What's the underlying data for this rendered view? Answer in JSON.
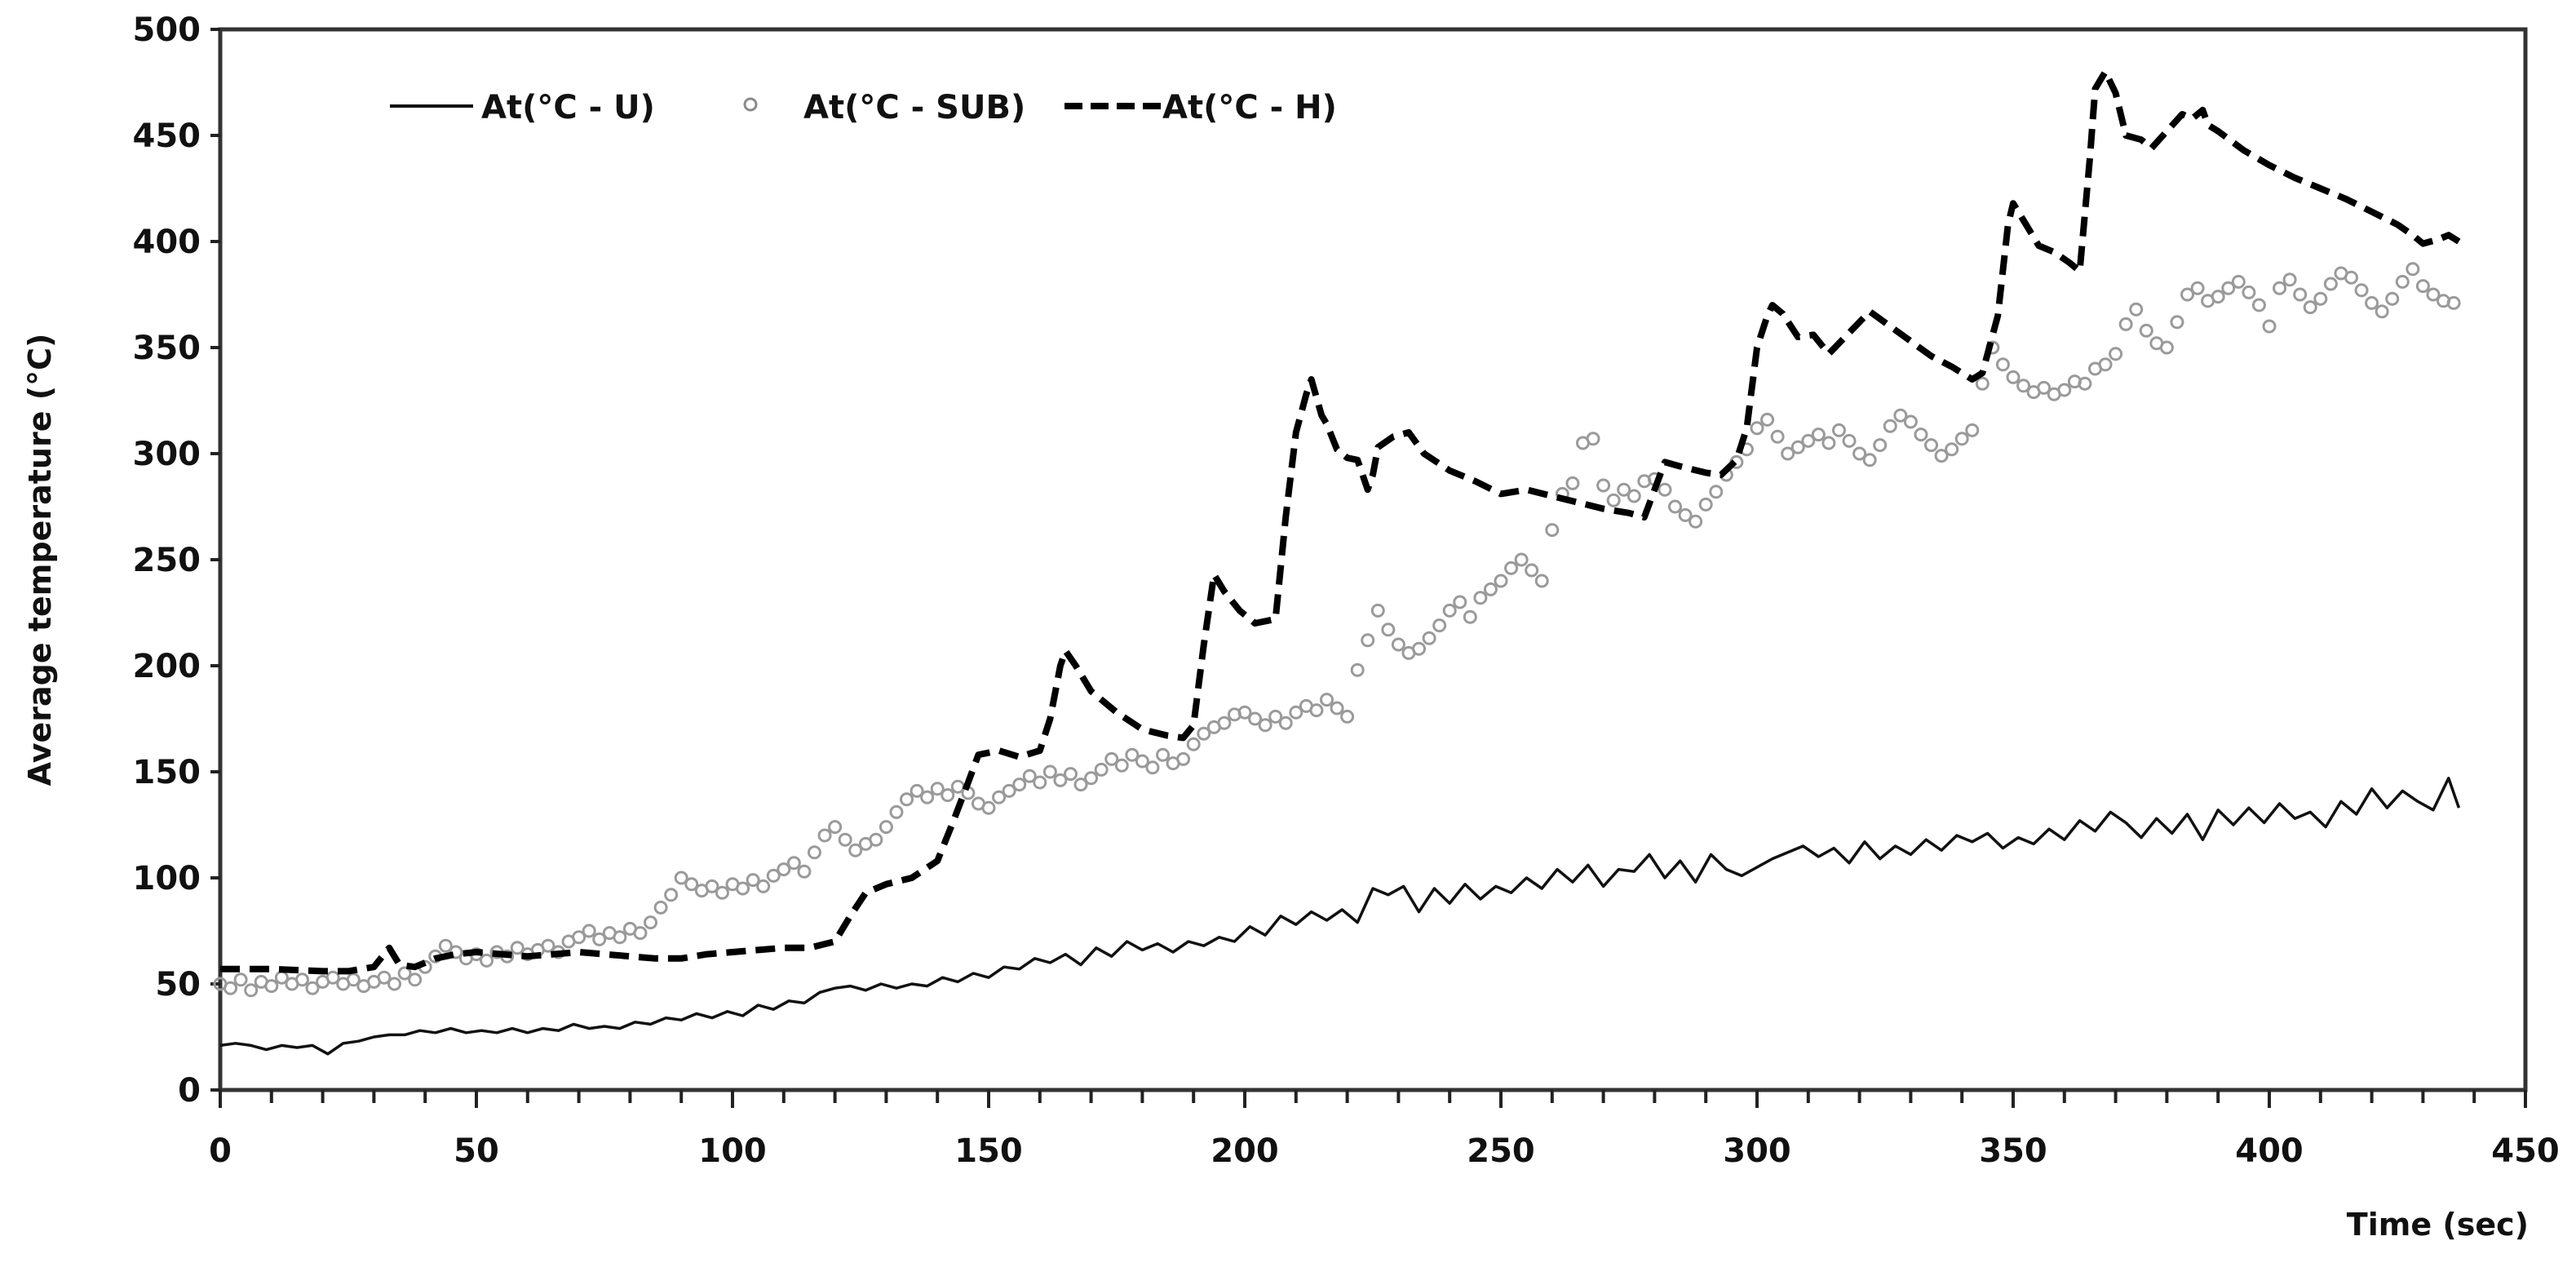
{
  "chart_data": {
    "type": "line",
    "title": "",
    "xlabel": "Time (sec)",
    "ylabel": "Average temperature (°C)",
    "xlim": [
      0,
      450
    ],
    "ylim": [
      0,
      500
    ],
    "x_ticks": [
      0,
      50,
      100,
      150,
      200,
      250,
      300,
      350,
      400,
      450
    ],
    "x_minor_step": 10,
    "y_ticks": [
      0,
      50,
      100,
      150,
      200,
      250,
      300,
      350,
      400,
      450,
      500
    ],
    "grid": false,
    "legend_position": "top-left-inside",
    "series": [
      {
        "name": "At(°C - U)",
        "style": "solid",
        "color": "#111111",
        "x": [
          0,
          3,
          6,
          9,
          12,
          15,
          18,
          21,
          24,
          27,
          30,
          33,
          36,
          39,
          42,
          45,
          48,
          51,
          54,
          57,
          60,
          63,
          66,
          69,
          72,
          75,
          78,
          81,
          84,
          87,
          90,
          93,
          96,
          99,
          102,
          105,
          108,
          111,
          114,
          117,
          120,
          123,
          126,
          129,
          132,
          135,
          138,
          141,
          144,
          147,
          150,
          153,
          156,
          159,
          162,
          165,
          168,
          171,
          174,
          177,
          180,
          183,
          186,
          189,
          192,
          195,
          198,
          201,
          204,
          207,
          210,
          213,
          216,
          219,
          222,
          225,
          228,
          231,
          234,
          237,
          240,
          243,
          246,
          249,
          252,
          255,
          258,
          261,
          264,
          267,
          270,
          273,
          276,
          279,
          282,
          285,
          288,
          291,
          294,
          297,
          300,
          303,
          306,
          309,
          312,
          315,
          318,
          321,
          324,
          327,
          330,
          333,
          336,
          339,
          342,
          345,
          348,
          351,
          354,
          357,
          360,
          363,
          366,
          369,
          372,
          375,
          378,
          381,
          384,
          387,
          390,
          393,
          396,
          399,
          402,
          405,
          408,
          411,
          414,
          417,
          420,
          423,
          426,
          429,
          432,
          435,
          437
        ],
        "values": [
          21,
          22,
          21,
          19,
          21,
          20,
          21,
          17,
          22,
          23,
          25,
          26,
          26,
          28,
          27,
          29,
          27,
          28,
          27,
          29,
          27,
          29,
          28,
          31,
          29,
          30,
          29,
          32,
          31,
          34,
          33,
          36,
          34,
          37,
          35,
          40,
          38,
          42,
          41,
          46,
          48,
          49,
          47,
          50,
          48,
          50,
          49,
          53,
          51,
          55,
          53,
          58,
          57,
          62,
          60,
          64,
          59,
          67,
          63,
          70,
          66,
          69,
          65,
          70,
          68,
          72,
          70,
          77,
          73,
          82,
          78,
          84,
          80,
          85,
          79,
          95,
          92,
          96,
          84,
          95,
          88,
          97,
          90,
          96,
          93,
          100,
          95,
          104,
          98,
          106,
          96,
          104,
          103,
          111,
          100,
          108,
          98,
          111,
          104,
          101,
          105,
          109,
          112,
          115,
          110,
          114,
          107,
          117,
          109,
          115,
          111,
          118,
          113,
          120,
          117,
          121,
          114,
          119,
          116,
          123,
          118,
          127,
          122,
          131,
          126,
          119,
          128,
          121,
          130,
          118,
          132,
          125,
          133,
          126,
          135,
          128,
          131,
          124,
          136,
          130,
          142,
          133,
          141,
          136,
          132,
          147,
          133
        ]
      },
      {
        "name": "At(°C - SUB)",
        "style": "markers",
        "color": "#9a9a9a",
        "x": [
          0,
          2,
          4,
          6,
          8,
          10,
          12,
          14,
          16,
          18,
          20,
          22,
          24,
          26,
          28,
          30,
          32,
          34,
          36,
          38,
          40,
          42,
          44,
          46,
          48,
          50,
          52,
          54,
          56,
          58,
          60,
          62,
          64,
          66,
          68,
          70,
          72,
          74,
          76,
          78,
          80,
          82,
          84,
          86,
          88,
          90,
          92,
          94,
          96,
          98,
          100,
          102,
          104,
          106,
          108,
          110,
          112,
          114,
          116,
          118,
          120,
          122,
          124,
          126,
          128,
          130,
          132,
          134,
          136,
          138,
          140,
          142,
          144,
          146,
          148,
          150,
          152,
          154,
          156,
          158,
          160,
          162,
          164,
          166,
          168,
          170,
          172,
          174,
          176,
          178,
          180,
          182,
          184,
          186,
          188,
          190,
          192,
          194,
          196,
          198,
          200,
          202,
          204,
          206,
          208,
          210,
          212,
          214,
          216,
          218,
          220,
          222,
          224,
          226,
          228,
          230,
          232,
          234,
          236,
          238,
          240,
          242,
          244,
          246,
          248,
          250,
          252,
          254,
          256,
          258,
          260,
          262,
          264,
          266,
          268,
          270,
          272,
          274,
          276,
          278,
          280,
          282,
          284,
          286,
          288,
          290,
          292,
          294,
          296,
          298,
          300,
          302,
          304,
          306,
          308,
          310,
          312,
          314,
          316,
          318,
          320,
          322,
          324,
          326,
          328,
          330,
          332,
          334,
          336,
          338,
          340,
          342,
          344,
          346,
          348,
          350,
          352,
          354,
          356,
          358,
          360,
          362,
          364,
          366,
          368,
          370,
          372,
          374,
          376,
          378,
          380,
          382,
          384,
          386,
          388,
          390,
          392,
          394,
          396,
          398,
          400,
          402,
          404,
          406,
          408,
          410,
          412,
          414,
          416,
          418,
          420,
          422,
          424,
          426,
          428,
          430,
          432,
          434,
          436
        ],
        "values": [
          50,
          48,
          52,
          47,
          51,
          49,
          53,
          50,
          52,
          48,
          51,
          53,
          50,
          52,
          49,
          51,
          53,
          50,
          55,
          52,
          58,
          63,
          68,
          65,
          62,
          64,
          61,
          65,
          63,
          67,
          64,
          66,
          68,
          65,
          70,
          72,
          75,
          71,
          74,
          72,
          76,
          74,
          79,
          86,
          92,
          100,
          97,
          94,
          96,
          93,
          97,
          95,
          99,
          96,
          101,
          104,
          107,
          103,
          112,
          120,
          124,
          118,
          113,
          116,
          118,
          124,
          131,
          137,
          141,
          138,
          142,
          139,
          143,
          140,
          135,
          133,
          138,
          141,
          144,
          148,
          145,
          150,
          146,
          149,
          144,
          147,
          151,
          156,
          153,
          158,
          155,
          152,
          158,
          154,
          156,
          163,
          168,
          171,
          173,
          177,
          178,
          175,
          172,
          176,
          173,
          178,
          181,
          179,
          184,
          180,
          176,
          198,
          212,
          226,
          217,
          210,
          206,
          208,
          213,
          219,
          226,
          230,
          223,
          232,
          236,
          240,
          246,
          250,
          245,
          240,
          264,
          281,
          286,
          305,
          307,
          285,
          278,
          283,
          280,
          287,
          288,
          283,
          275,
          271,
          268,
          276,
          282,
          290,
          296,
          302,
          312,
          316,
          308,
          300,
          303,
          306,
          309,
          305,
          311,
          306,
          300,
          297,
          304,
          313,
          318,
          315,
          309,
          304,
          299,
          302,
          307,
          311,
          333,
          350,
          342,
          336,
          332,
          329,
          331,
          328,
          330,
          334,
          333,
          340,
          342,
          347,
          361,
          368,
          358,
          352,
          350,
          362,
          375,
          378,
          372,
          374,
          378,
          381,
          376,
          370,
          360,
          378,
          382,
          375,
          369,
          373,
          380,
          385,
          383,
          377,
          371,
          367,
          373,
          381,
          387,
          379,
          375,
          372,
          371
        ]
      },
      {
        "name": "At(°C - H)",
        "style": "dashed",
        "color": "#000000",
        "x": [
          0,
          10,
          20,
          25,
          30,
          33,
          35,
          38,
          42,
          46,
          50,
          55,
          60,
          65,
          70,
          75,
          80,
          85,
          90,
          95,
          100,
          105,
          110,
          115,
          120,
          123,
          126,
          130,
          135,
          140,
          143,
          146,
          148,
          152,
          156,
          160,
          162,
          164,
          165,
          167,
          170,
          175,
          180,
          185,
          188,
          190,
          192,
          194,
          196,
          199,
          202,
          206,
          208,
          210,
          212,
          213,
          215,
          216,
          218,
          220,
          222,
          224,
          225,
          226,
          229,
          232,
          235,
          240,
          245,
          250,
          255,
          260,
          265,
          270,
          275,
          278,
          282,
          285,
          290,
          293,
          296,
          298,
          300,
          302,
          303,
          305,
          308,
          311,
          314,
          318,
          322,
          326,
          330,
          334,
          338,
          342,
          344,
          347,
          349,
          350,
          352,
          355,
          358,
          361,
          363,
          365,
          366,
          368,
          370,
          372,
          375,
          377,
          380,
          383,
          385,
          387,
          388,
          390,
          395,
          400,
          405,
          410,
          415,
          420,
          425,
          428,
          430,
          433,
          435,
          437
        ],
        "values": [
          57,
          57,
          56,
          56,
          58,
          67,
          59,
          58,
          62,
          64,
          65,
          64,
          63,
          64,
          65,
          64,
          63,
          62,
          62,
          64,
          65,
          66,
          67,
          67,
          70,
          82,
          93,
          97,
          100,
          108,
          126,
          145,
          158,
          160,
          157,
          160,
          175,
          200,
          207,
          200,
          188,
          178,
          170,
          167,
          166,
          172,
          210,
          243,
          235,
          226,
          220,
          222,
          270,
          310,
          328,
          335,
          318,
          314,
          302,
          298,
          297,
          283,
          290,
          303,
          308,
          310,
          300,
          292,
          287,
          281,
          283,
          280,
          277,
          274,
          272,
          270,
          296,
          294,
          291,
          290,
          297,
          312,
          350,
          365,
          370,
          366,
          355,
          356,
          347,
          357,
          367,
          360,
          353,
          346,
          341,
          335,
          338,
          365,
          408,
          418,
          410,
          398,
          395,
          390,
          386,
          440,
          472,
          480,
          470,
          450,
          448,
          444,
          452,
          460,
          458,
          462,
          455,
          452,
          443,
          436,
          430,
          425,
          420,
          414,
          408,
          403,
          399,
          401,
          403,
          400
        ]
      }
    ]
  },
  "legend": {
    "items": [
      {
        "label": "At(°C - U)",
        "symbol": "solid-line"
      },
      {
        "label": "At(°C - SUB)",
        "symbol": "hollow-marker"
      },
      {
        "label": "At(°C - H)",
        "symbol": "dashed-line"
      }
    ]
  },
  "axes": {
    "x_title": "Time (sec)",
    "y_title": "Average temperature (°C)"
  }
}
